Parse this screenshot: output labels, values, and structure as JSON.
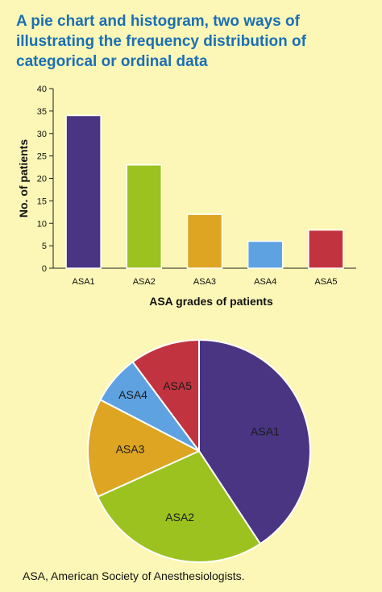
{
  "header": {
    "title": "A pie chart and histogram, two ways of illustrating the frequency distribution of categorical or ordinal data"
  },
  "footnote": "ASA, American Society of Anesthesiologists.",
  "chart_data": [
    {
      "type": "bar",
      "categories": [
        "ASA1",
        "ASA2",
        "ASA3",
        "ASA4",
        "ASA5"
      ],
      "values": [
        34,
        23,
        12,
        6,
        8.5
      ],
      "colors": [
        "#4a3582",
        "#9cc21f",
        "#dda522",
        "#5ea2e2",
        "#c23340"
      ],
      "xlabel": "ASA grades of patients",
      "ylabel": "No. of patients",
      "ylim": [
        0,
        40
      ],
      "yticks": [
        0,
        5,
        10,
        15,
        20,
        25,
        30,
        35,
        40
      ],
      "grid": false,
      "legend": "none"
    },
    {
      "type": "pie",
      "labels": [
        "ASA1",
        "ASA2",
        "ASA3",
        "ASA4",
        "ASA5"
      ],
      "values": [
        34,
        23,
        12,
        6,
        8.5
      ],
      "colors": [
        "#4a3582",
        "#9cc21f",
        "#dda522",
        "#5ea2e2",
        "#c23340"
      ],
      "label_color": "#1a1a1a",
      "legend": "none"
    }
  ]
}
